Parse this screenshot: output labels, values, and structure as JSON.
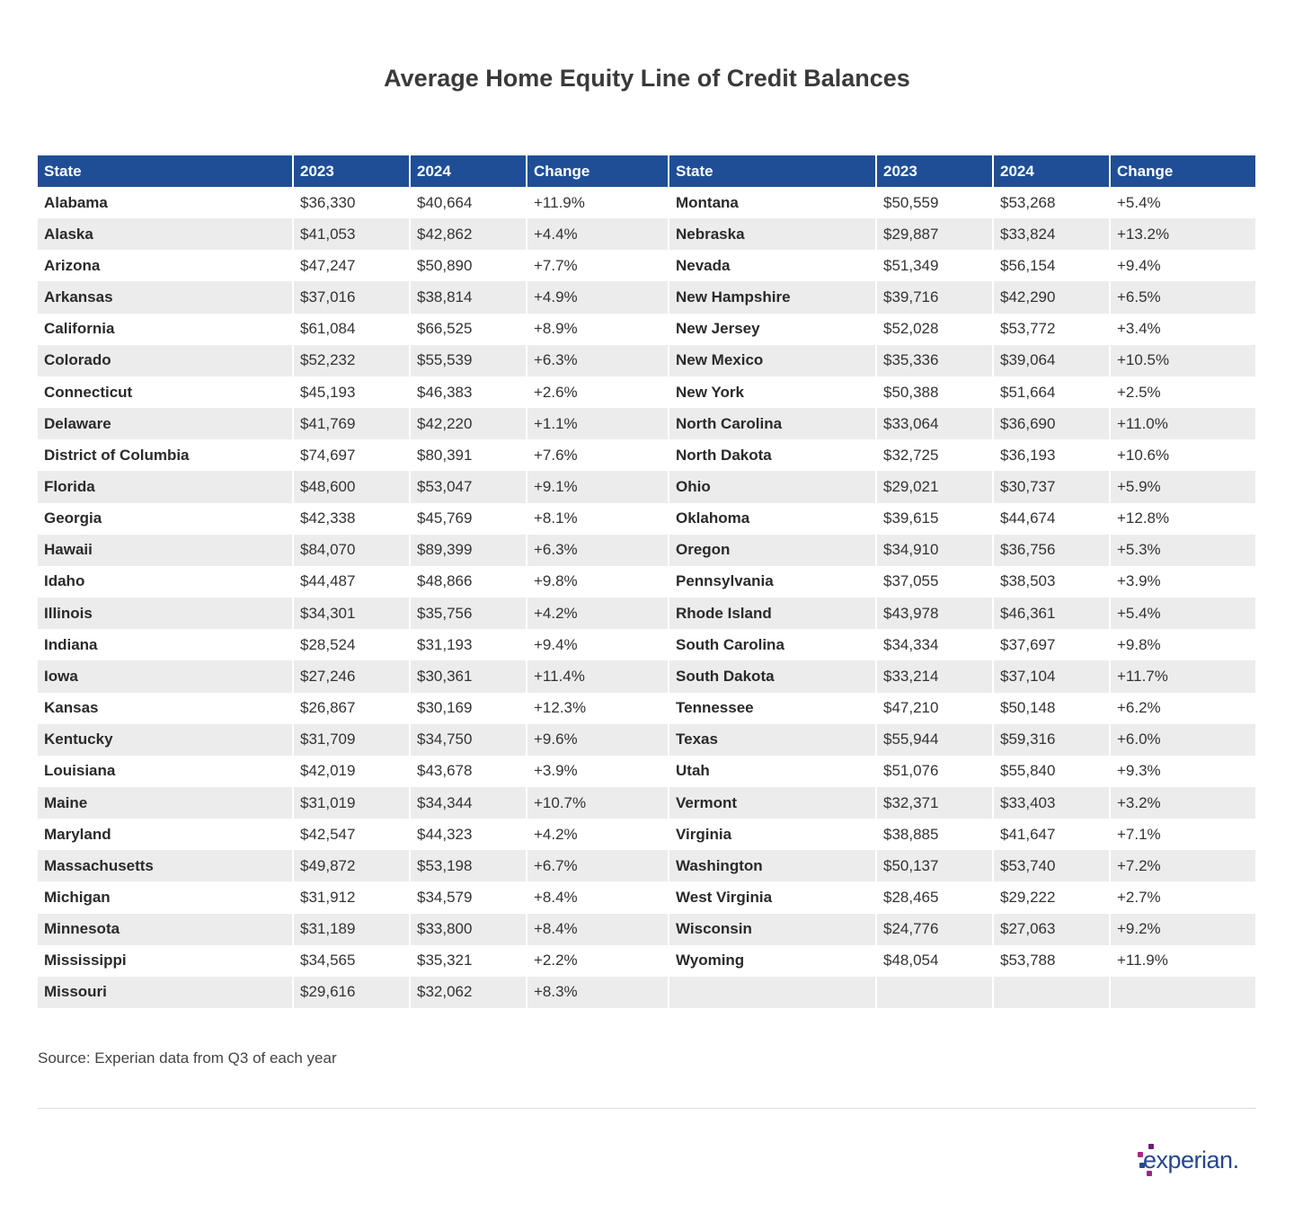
{
  "title": "Average Home Equity Line of Credit Balances",
  "table": {
    "header": [
      "State",
      "2023",
      "2024",
      "Change",
      "State",
      "2023",
      "2024",
      "Change"
    ],
    "rows": [
      [
        "Alabama",
        "$36,330",
        "$40,664",
        "+11.9%",
        "Montana",
        "$50,559",
        "$53,268",
        "+5.4%"
      ],
      [
        "Alaska",
        "$41,053",
        "$42,862",
        "+4.4%",
        "Nebraska",
        "$29,887",
        "$33,824",
        "+13.2%"
      ],
      [
        "Arizona",
        "$47,247",
        "$50,890",
        "+7.7%",
        "Nevada",
        "$51,349",
        "$56,154",
        "+9.4%"
      ],
      [
        "Arkansas",
        "$37,016",
        "$38,814",
        "+4.9%",
        "New Hampshire",
        "$39,716",
        "$42,290",
        "+6.5%"
      ],
      [
        "California",
        "$61,084",
        "$66,525",
        "+8.9%",
        "New Jersey",
        "$52,028",
        "$53,772",
        "+3.4%"
      ],
      [
        "Colorado",
        "$52,232",
        "$55,539",
        "+6.3%",
        "New Mexico",
        "$35,336",
        "$39,064",
        "+10.5%"
      ],
      [
        "Connecticut",
        "$45,193",
        "$46,383",
        "+2.6%",
        "New York",
        "$50,388",
        "$51,664",
        "+2.5%"
      ],
      [
        "Delaware",
        "$41,769",
        "$42,220",
        "+1.1%",
        "North Carolina",
        "$33,064",
        "$36,690",
        "+11.0%"
      ],
      [
        "District of Columbia",
        "$74,697",
        "$80,391",
        "+7.6%",
        "North Dakota",
        "$32,725",
        "$36,193",
        "+10.6%"
      ],
      [
        "Florida",
        "$48,600",
        "$53,047",
        "+9.1%",
        "Ohio",
        "$29,021",
        "$30,737",
        "+5.9%"
      ],
      [
        "Georgia",
        "$42,338",
        "$45,769",
        "+8.1%",
        "Oklahoma",
        "$39,615",
        "$44,674",
        "+12.8%"
      ],
      [
        "Hawaii",
        "$84,070",
        "$89,399",
        "+6.3%",
        "Oregon",
        "$34,910",
        "$36,756",
        "+5.3%"
      ],
      [
        "Idaho",
        "$44,487",
        "$48,866",
        "+9.8%",
        "Pennsylvania",
        "$37,055",
        "$38,503",
        "+3.9%"
      ],
      [
        "Illinois",
        "$34,301",
        "$35,756",
        "+4.2%",
        "Rhode Island",
        "$43,978",
        "$46,361",
        "+5.4%"
      ],
      [
        "Indiana",
        "$28,524",
        "$31,193",
        "+9.4%",
        "South Carolina",
        "$34,334",
        "$37,697",
        "+9.8%"
      ],
      [
        "Iowa",
        "$27,246",
        "$30,361",
        "+11.4%",
        "South Dakota",
        "$33,214",
        "$37,104",
        "+11.7%"
      ],
      [
        "Kansas",
        "$26,867",
        "$30,169",
        "+12.3%",
        "Tennessee",
        "$47,210",
        "$50,148",
        "+6.2%"
      ],
      [
        "Kentucky",
        "$31,709",
        "$34,750",
        "+9.6%",
        "Texas",
        "$55,944",
        "$59,316",
        "+6.0%"
      ],
      [
        "Louisiana",
        "$42,019",
        "$43,678",
        "+3.9%",
        "Utah",
        "$51,076",
        "$55,840",
        "+9.3%"
      ],
      [
        "Maine",
        "$31,019",
        "$34,344",
        "+10.7%",
        "Vermont",
        "$32,371",
        "$33,403",
        "+3.2%"
      ],
      [
        "Maryland",
        "$42,547",
        "$44,323",
        "+4.2%",
        "Virginia",
        "$38,885",
        "$41,647",
        "+7.1%"
      ],
      [
        "Massachusetts",
        "$49,872",
        "$53,198",
        "+6.7%",
        "Washington",
        "$50,137",
        "$53,740",
        "+7.2%"
      ],
      [
        "Michigan",
        "$31,912",
        "$34,579",
        "+8.4%",
        "West Virginia",
        "$28,465",
        "$29,222",
        "+2.7%"
      ],
      [
        "Minnesota",
        "$31,189",
        "$33,800",
        "+8.4%",
        "Wisconsin",
        "$24,776",
        "$27,063",
        "+9.2%"
      ],
      [
        "Mississippi",
        "$34,565",
        "$35,321",
        "+2.2%",
        "Wyoming",
        "$48,054",
        "$53,788",
        "+11.9%"
      ],
      [
        "Missouri",
        "$29,616",
        "$32,062",
        "+8.3%",
        null,
        null,
        null,
        null
      ]
    ]
  },
  "source": "Source: Experian data from Q3 of each year",
  "logo": "experian."
}
